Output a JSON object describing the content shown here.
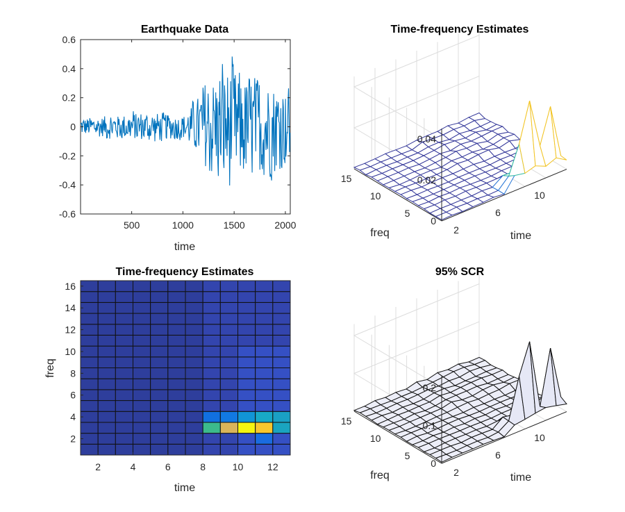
{
  "chart_data": [
    {
      "type": "line",
      "title": "Earthquake Data",
      "xlabel": "time",
      "ylabel": "",
      "xlim": [
        1,
        2048
      ],
      "ylim": [
        -0.6,
        0.6
      ],
      "xticks": [
        "500",
        "1000",
        "1500",
        "2000"
      ],
      "yticks": [
        "-0.6",
        "-0.4",
        "-0.2",
        "0",
        "0.2",
        "0.4",
        "0.6"
      ],
      "color": "#0072BD",
      "n_samples": 2048,
      "envelope": [
        {
          "t": 1,
          "amp": 0.07
        },
        {
          "t": 600,
          "amp": 0.12
        },
        {
          "t": 1000,
          "amp": 0.1
        },
        {
          "t": 1150,
          "amp": 0.22
        },
        {
          "t": 1200,
          "amp": 0.36
        },
        {
          "t": 1430,
          "amp": 0.5
        },
        {
          "t": 1600,
          "amp": 0.42
        },
        {
          "t": 1900,
          "amp": 0.38
        },
        {
          "t": 2048,
          "amp": 0.3
        }
      ]
    },
    {
      "type": "surface",
      "title": "Time-frequency Estimates",
      "xlabel": "time",
      "ylabel": "freq",
      "zlim": [
        0,
        0.045
      ],
      "zticks": [
        "0",
        "0.02",
        "0.04"
      ],
      "time_ticks": [
        "2",
        "6",
        "10"
      ],
      "freq_ticks": [
        "5",
        "10",
        "15"
      ],
      "peaks": [
        {
          "time": 10,
          "freq": 2,
          "z": 0.038
        },
        {
          "time": 12,
          "freq": 2,
          "z": 0.031
        },
        {
          "time": 11,
          "freq": 2,
          "z": 0.014
        },
        {
          "time": 9,
          "freq": 2,
          "z": 0.019
        }
      ]
    },
    {
      "type": "heatmap",
      "title": "Time-frequency Estimates",
      "xlabel": "time",
      "ylabel": "freq",
      "xticks": [
        "2",
        "4",
        "6",
        "8",
        "10",
        "12"
      ],
      "yticks": [
        "2",
        "4",
        "6",
        "8",
        "10",
        "12",
        "14",
        "16"
      ],
      "rows": 16,
      "cols": 12,
      "hot_cells": [
        {
          "time": 9,
          "freq": 3,
          "color": "#3CBA8C"
        },
        {
          "time": 10,
          "freq": 3,
          "color": "#D9B45A"
        },
        {
          "time": 11,
          "freq": 3,
          "color": "#F5F50F"
        },
        {
          "time": 12,
          "freq": 3,
          "color": "#F8C72E"
        },
        {
          "time": 13,
          "freq": 3,
          "color": "#1AA4BF"
        },
        {
          "time": 9,
          "freq": 4,
          "color": "#1170E0"
        },
        {
          "time": 10,
          "freq": 4,
          "color": "#1179E2"
        },
        {
          "time": 11,
          "freq": 4,
          "color": "#1195D6"
        },
        {
          "time": 12,
          "freq": 4,
          "color": "#18A9C6"
        },
        {
          "time": 13,
          "freq": 4,
          "color": "#1AA0C4"
        },
        {
          "time": 12,
          "freq": 2,
          "color": "#1A6CE0"
        }
      ]
    },
    {
      "type": "surface",
      "title": "95% SCR",
      "xlabel": "time",
      "ylabel": "freq",
      "zlim": [
        0,
        0.23
      ],
      "zticks": [
        "0",
        "0.1",
        "0.2"
      ],
      "time_ticks": [
        "2",
        "6",
        "10"
      ],
      "freq_ticks": [
        "5",
        "10",
        "15"
      ],
      "peaks": [
        {
          "time": 10,
          "freq": 2,
          "z": 0.21
        },
        {
          "time": 12,
          "freq": 2,
          "z": 0.17
        },
        {
          "time": 9,
          "freq": 2,
          "z": 0.13
        }
      ]
    }
  ]
}
